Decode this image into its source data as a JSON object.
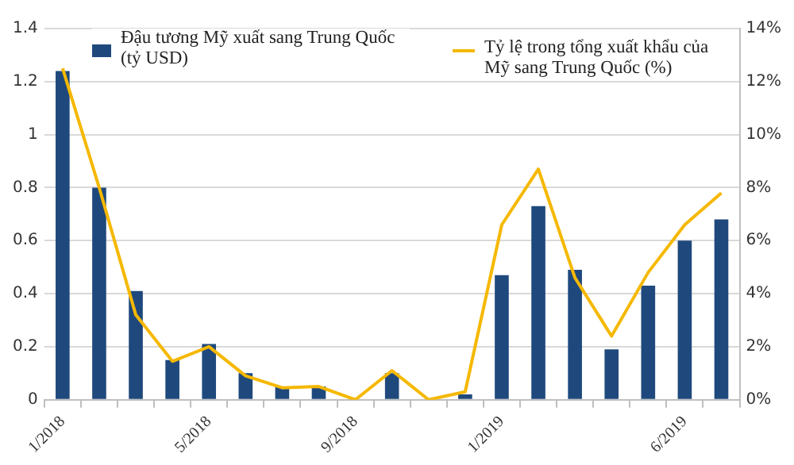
{
  "chart_data": {
    "type": "bar",
    "categories": [
      "1/2018",
      null,
      null,
      null,
      "5/2018",
      null,
      null,
      null,
      "9/2018",
      null,
      null,
      null,
      "1/2019",
      null,
      null,
      null,
      null,
      "6/2019",
      null
    ],
    "series": [
      {
        "name": "Đậu tương Mỹ xuất sang Trung Quốc (tỷ USD)",
        "color": "#1f497d",
        "values": [
          1.24,
          0.8,
          0.41,
          0.15,
          0.21,
          0.1,
          0.05,
          0.05,
          0,
          0.1,
          0,
          0.02,
          0.47,
          0.73,
          0.49,
          0.19,
          0.43,
          0.6,
          0.68
        ]
      },
      {
        "name": "Tỷ lệ trong tổng xuất khẩu của Mỹ sang Trung Quốc (%)",
        "type": "line",
        "axis": "y2",
        "color": "#f5b800",
        "values": [
          12.5,
          8,
          3.2,
          1.45,
          2,
          0.9,
          0.45,
          0.5,
          0,
          1.1,
          0,
          0.3,
          6.6,
          8.7,
          4.6,
          2.4,
          4.8,
          6.6,
          7.8
        ]
      }
    ],
    "ylim": [
      0,
      1.4
    ],
    "yticks": [
      0,
      0.2,
      0.4,
      0.6,
      0.8,
      1,
      1.2,
      1.4
    ],
    "y2lim": [
      0,
      14
    ],
    "y2ticks": [
      {
        "value": 0,
        "label": "0%"
      },
      {
        "value": 2,
        "label": "2%"
      },
      {
        "value": 4,
        "label": "4%"
      },
      {
        "value": 6,
        "label": "6%"
      },
      {
        "value": 8,
        "label": "8%"
      },
      {
        "value": 10,
        "label": "10%"
      },
      {
        "value": 12,
        "label": "12%"
      },
      {
        "value": 14,
        "label": "14%"
      }
    ],
    "grid": "y",
    "legend": "top",
    "marker": "none"
  }
}
